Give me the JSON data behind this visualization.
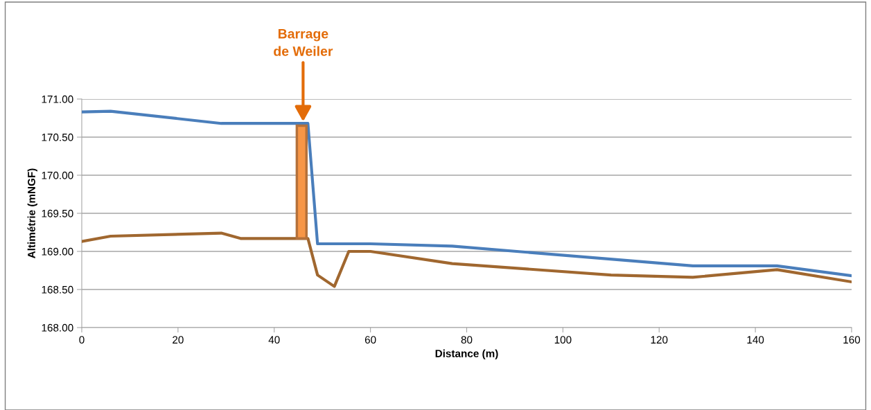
{
  "chart_data": {
    "type": "line",
    "xlabel": "Distance (m)",
    "ylabel": "Altimétrie (mNGF)",
    "xlim": [
      0,
      160
    ],
    "xticks": [
      0,
      20,
      40,
      60,
      80,
      100,
      120,
      140,
      160
    ],
    "ylim": [
      168,
      171
    ],
    "yticks": [
      {
        "value": 168,
        "label": "168.00"
      },
      {
        "value": 168.5,
        "label": "168.50"
      },
      {
        "value": 169,
        "label": "169.00"
      },
      {
        "value": 169.5,
        "label": "169.50"
      },
      {
        "value": 170,
        "label": "170.00"
      },
      {
        "value": 170.5,
        "label": "170.50"
      },
      {
        "value": 171,
        "label": "171.00"
      }
    ],
    "grid": "y",
    "legend": false,
    "marker": "none",
    "series": [
      {
        "type": "bar",
        "color": "#f79646",
        "x": [
          45.7
        ],
        "base": [
          169.17
        ],
        "values": [
          1.48
        ]
      },
      {
        "color": "#4a7ebb",
        "x": [
          0,
          6,
          29,
          47,
          49,
          60,
          77,
          127,
          144.5,
          160
        ],
        "values": [
          170.83,
          170.84,
          170.68,
          170.68,
          169.1,
          169.1,
          169.07,
          168.81,
          168.81,
          168.68
        ]
      },
      {
        "color": "#a0672f",
        "x": [
          0,
          6,
          29,
          33,
          47,
          49,
          52.5,
          55.5,
          60,
          77,
          110,
          127,
          144.5,
          160
        ],
        "values": [
          169.13,
          169.2,
          169.24,
          169.17,
          169.17,
          168.69,
          168.54,
          169.0,
          169.0,
          168.84,
          168.69,
          168.66,
          168.76,
          168.6
        ]
      }
    ],
    "annotations": [
      {
        "text": "Barrage\nde Weiler",
        "x": 46,
        "y": 170.68
      }
    ]
  }
}
